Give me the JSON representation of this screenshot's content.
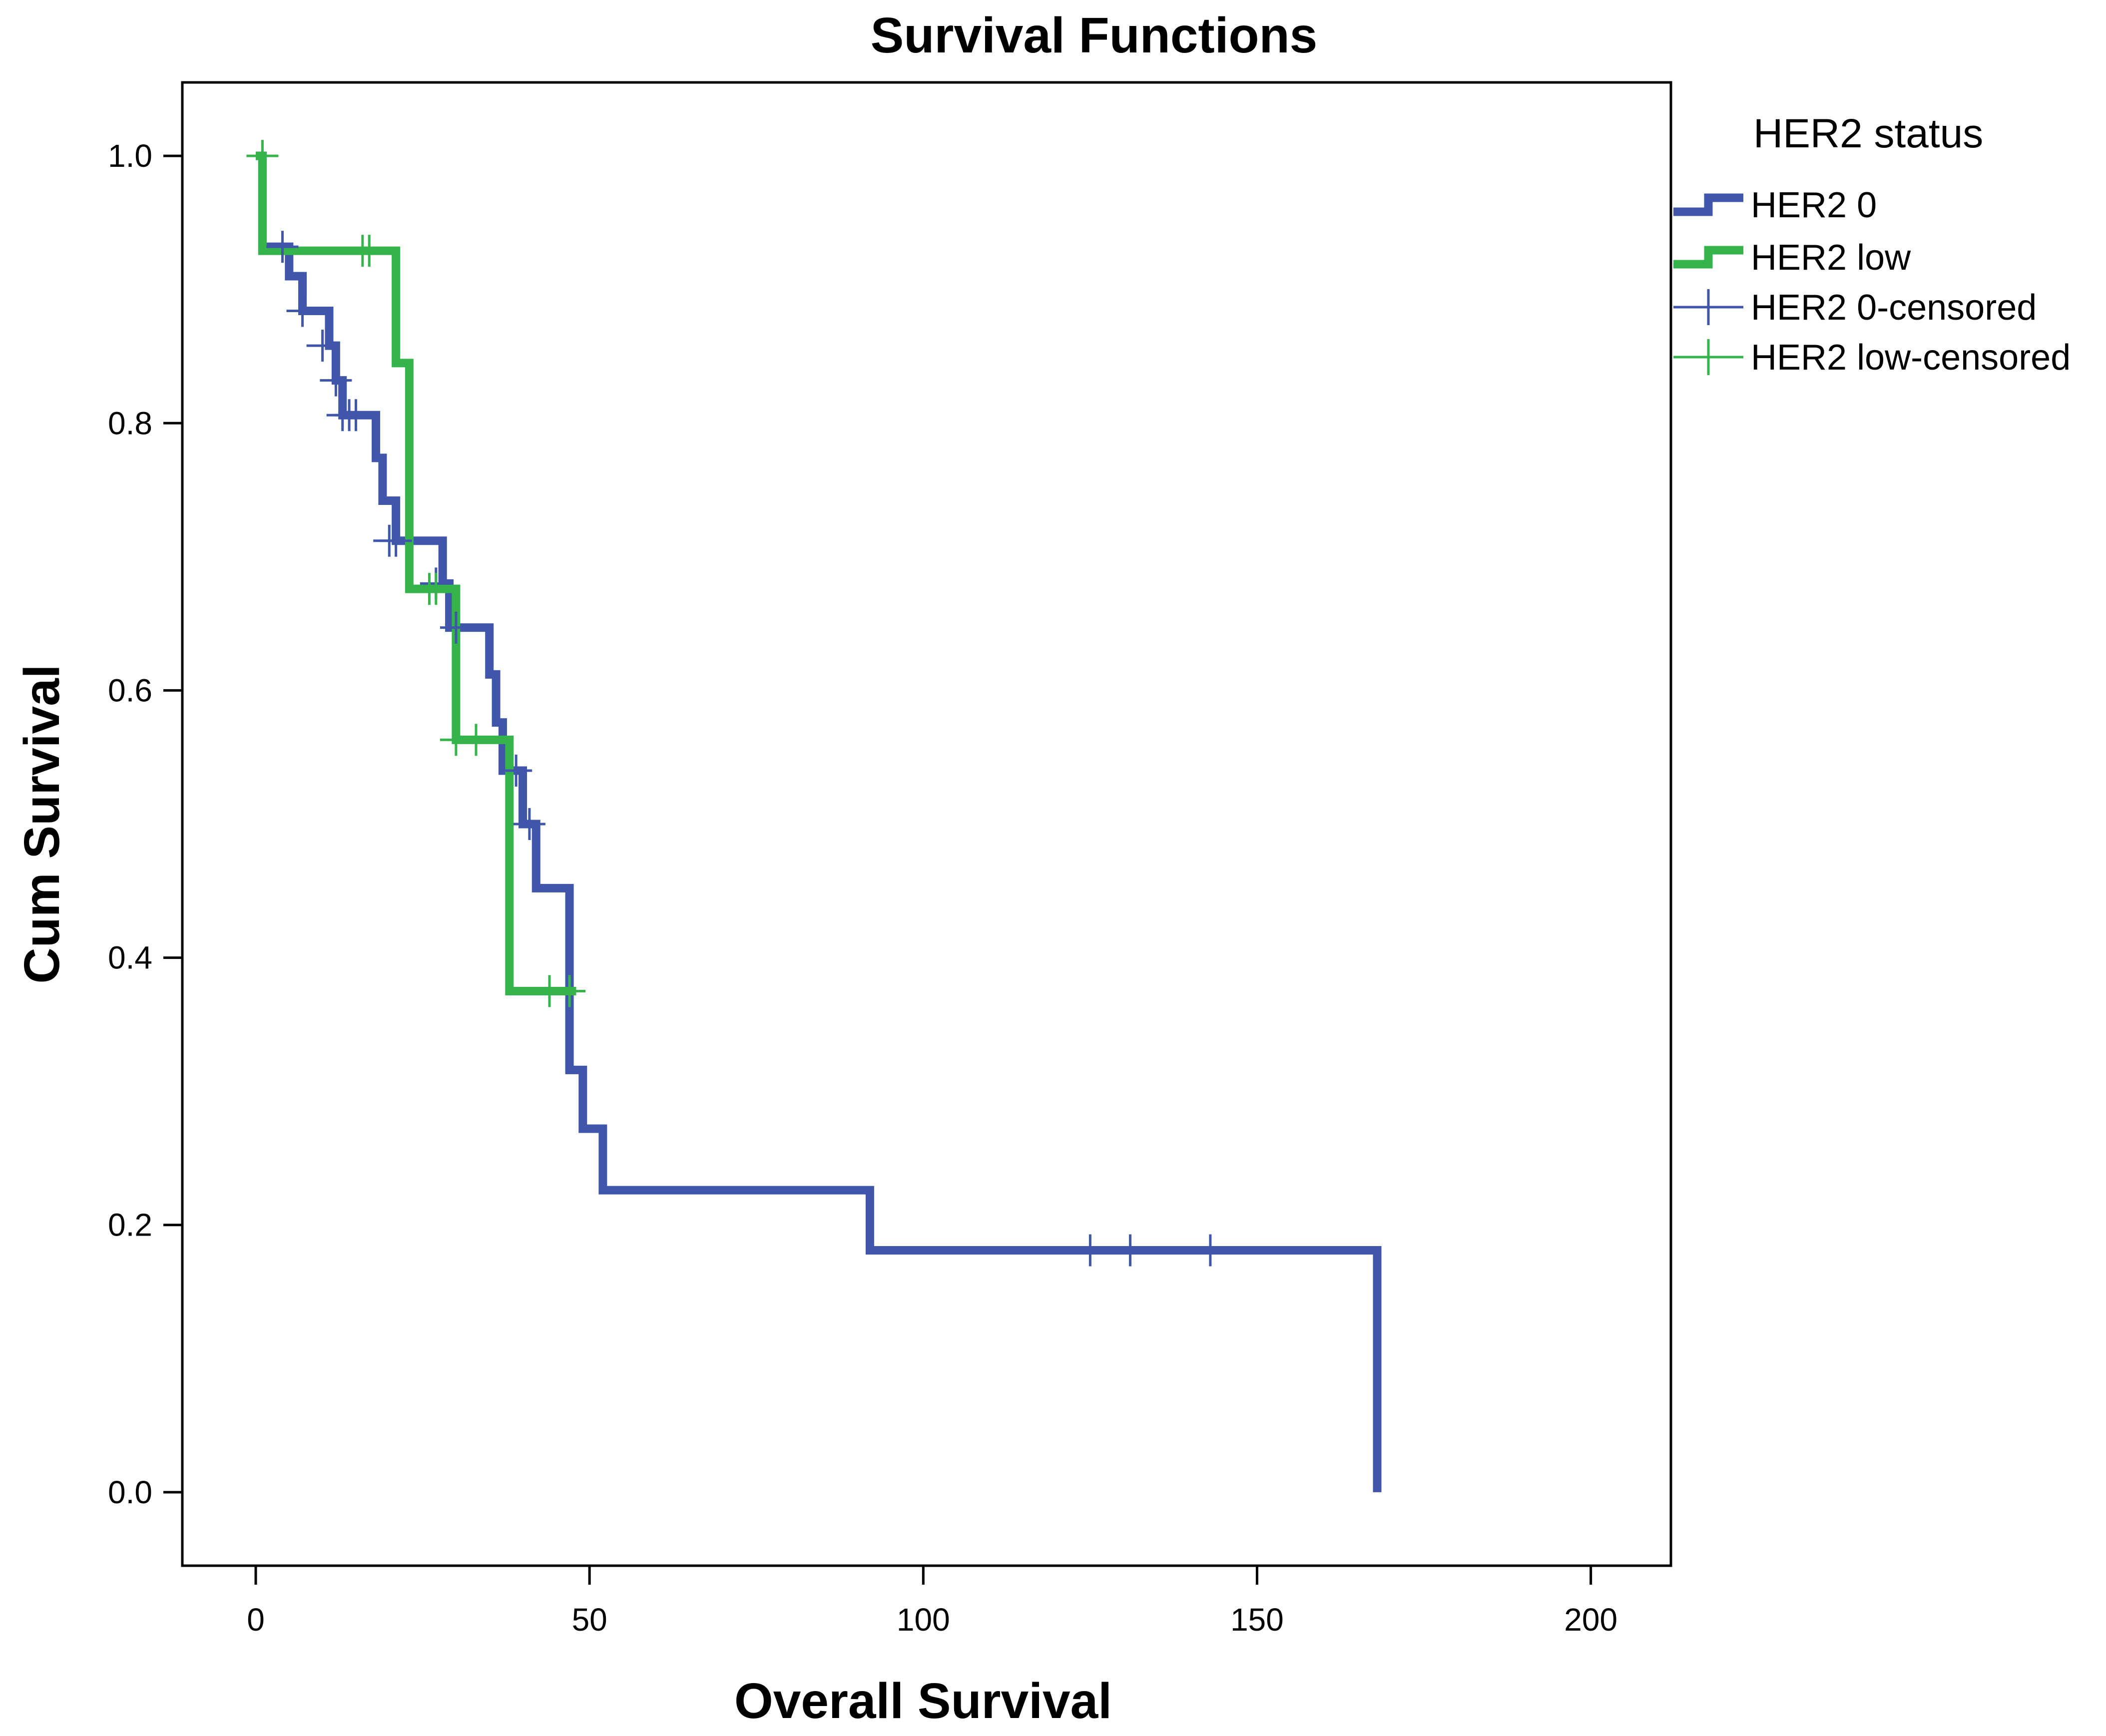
{
  "chart_data": {
    "type": "line",
    "title": "Survival Functions",
    "xlabel": "Overall Survival",
    "ylabel": "Cum Survival",
    "xlim": [
      -11,
      212
    ],
    "ylim": [
      -0.055,
      1.055
    ],
    "xticks": [
      0,
      50,
      100,
      150,
      200
    ],
    "yticks": [
      0.0,
      0.2,
      0.4,
      0.6,
      0.8,
      1.0
    ],
    "xtick_labels": [
      "0",
      "50",
      "100",
      "150",
      "200"
    ],
    "ytick_labels": [
      "0.0",
      "0.2",
      "0.4",
      "0.6",
      "0.8",
      "1.0"
    ],
    "grid": false,
    "legend": {
      "title": "HER2 status",
      "position": "right",
      "entries": [
        "HER2 0",
        "HER2 low",
        "HER2 0-censored",
        "HER2 low-censored"
      ]
    },
    "series": [
      {
        "name": "HER2 0",
        "color": "#3f56aa",
        "steps": [
          [
            0,
            1.0
          ],
          [
            1,
            0.932
          ],
          [
            5,
            0.91
          ],
          [
            7,
            0.884
          ],
          [
            11,
            0.858
          ],
          [
            12,
            0.832
          ],
          [
            13,
            0.806
          ],
          [
            18,
            0.774
          ],
          [
            19,
            0.742
          ],
          [
            21,
            0.712
          ],
          [
            28,
            0.68
          ],
          [
            29,
            0.647
          ],
          [
            35,
            0.612
          ],
          [
            36,
            0.576
          ],
          [
            37,
            0.54
          ],
          [
            40,
            0.5
          ],
          [
            42,
            0.452
          ],
          [
            47,
            0.316
          ],
          [
            49,
            0.272
          ],
          [
            52,
            0.226
          ],
          [
            92,
            0.181
          ],
          [
            168,
            0.0
          ]
        ],
        "end_x": 168,
        "censored": [
          [
            4,
            0.932
          ],
          [
            7,
            0.884
          ],
          [
            10,
            0.858
          ],
          [
            12,
            0.832
          ],
          [
            13,
            0.806
          ],
          [
            14,
            0.806
          ],
          [
            15,
            0.806
          ],
          [
            20,
            0.712
          ],
          [
            21,
            0.712
          ],
          [
            27,
            0.68
          ],
          [
            30,
            0.647
          ],
          [
            39,
            0.54
          ],
          [
            41,
            0.5
          ],
          [
            125,
            0.181
          ],
          [
            131,
            0.181
          ],
          [
            143,
            0.181
          ]
        ]
      },
      {
        "name": "HER2 low",
        "color": "#34b44a",
        "steps": [
          [
            0,
            1.0
          ],
          [
            1,
            0.929
          ],
          [
            21,
            0.845
          ],
          [
            23,
            0.676
          ],
          [
            30,
            0.563
          ],
          [
            38,
            0.375
          ]
        ],
        "end_x": 48,
        "censored": [
          [
            1,
            1.0
          ],
          [
            16,
            0.929
          ],
          [
            17,
            0.929
          ],
          [
            26,
            0.676
          ],
          [
            27,
            0.676
          ],
          [
            30,
            0.563
          ],
          [
            33,
            0.563
          ],
          [
            44,
            0.375
          ],
          [
            47,
            0.375
          ]
        ]
      }
    ]
  }
}
